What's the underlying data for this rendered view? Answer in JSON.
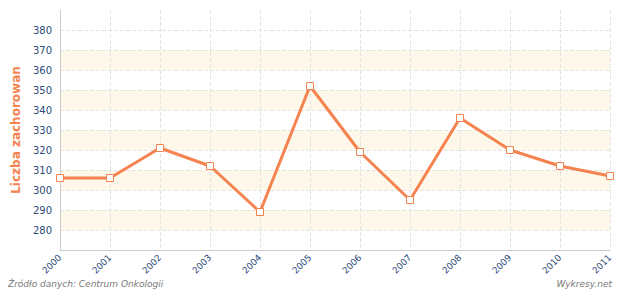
{
  "chart_data": {
    "type": "line",
    "y_label": "Liczba zachorowan",
    "categories": [
      "2000",
      "2001",
      "2002",
      "2003",
      "2004",
      "2005",
      "2006",
      "2007",
      "2008",
      "2009",
      "2010",
      "2011"
    ],
    "values": [
      306,
      306,
      321,
      312,
      289,
      352,
      319,
      295,
      336,
      320,
      312,
      307
    ],
    "color": "#f4834f",
    "marker": "square",
    "ylim": [
      270,
      390
    ],
    "yticks": [
      280,
      290,
      300,
      310,
      320,
      330,
      340,
      350,
      360,
      370,
      380
    ],
    "grid": true,
    "annotations": [
      "Źródło danych: Centrum Onkologii",
      "Wykresy.net",
      "wykresy.net"
    ]
  }
}
